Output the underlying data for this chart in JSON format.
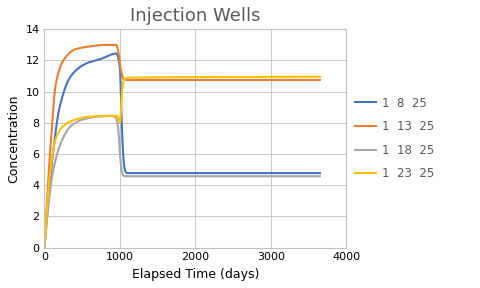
{
  "title": "Injection Wells",
  "xlabel": "Elapsed Time (days)",
  "ylabel": "Concentration",
  "xlim": [
    0,
    4000
  ],
  "ylim": [
    0,
    14
  ],
  "yticks": [
    0,
    2,
    4,
    6,
    8,
    10,
    12,
    14
  ],
  "xticks": [
    0,
    1000,
    2000,
    3000,
    4000
  ],
  "series": [
    {
      "label": "1  8  25",
      "color": "#4472C4",
      "key_points": [
        [
          0,
          0
        ],
        [
          100,
          5.5
        ],
        [
          200,
          9.0
        ],
        [
          350,
          11.0
        ],
        [
          550,
          11.8
        ],
        [
          750,
          12.1
        ],
        [
          900,
          12.4
        ],
        [
          950,
          12.45
        ],
        [
          1000,
          11.5
        ],
        [
          1020,
          8.5
        ],
        [
          1040,
          6.2
        ],
        [
          1060,
          5.1
        ],
        [
          1080,
          4.82
        ],
        [
          1100,
          4.78
        ],
        [
          3650,
          4.78
        ]
      ]
    },
    {
      "label": "1  13  25",
      "color": "#ED7D31",
      "key_points": [
        [
          0,
          0
        ],
        [
          80,
          6.5
        ],
        [
          150,
          10.5
        ],
        [
          250,
          12.0
        ],
        [
          400,
          12.7
        ],
        [
          600,
          12.9
        ],
        [
          800,
          13.0
        ],
        [
          950,
          13.0
        ],
        [
          980,
          12.5
        ],
        [
          1000,
          11.8
        ],
        [
          1020,
          11.2
        ],
        [
          1050,
          10.8
        ],
        [
          1100,
          10.75
        ],
        [
          3650,
          10.75
        ]
      ]
    },
    {
      "label": "1  18  25",
      "color": "#A5A5A5",
      "key_points": [
        [
          0,
          0
        ],
        [
          100,
          4.5
        ],
        [
          200,
          6.5
        ],
        [
          350,
          7.8
        ],
        [
          500,
          8.2
        ],
        [
          700,
          8.4
        ],
        [
          900,
          8.45
        ],
        [
          950,
          8.3
        ],
        [
          980,
          7.5
        ],
        [
          1000,
          6.0
        ],
        [
          1020,
          5.0
        ],
        [
          1040,
          4.65
        ],
        [
          1070,
          4.58
        ],
        [
          1100,
          4.58
        ],
        [
          3650,
          4.58
        ]
      ]
    },
    {
      "label": "1  23  25",
      "color": "#FFC000",
      "key_points": [
        [
          0,
          0
        ],
        [
          80,
          5.0
        ],
        [
          150,
          7.0
        ],
        [
          250,
          7.8
        ],
        [
          400,
          8.2
        ],
        [
          600,
          8.4
        ],
        [
          800,
          8.45
        ],
        [
          950,
          8.45
        ],
        [
          980,
          8.3
        ],
        [
          1000,
          8.0
        ],
        [
          1020,
          9.5
        ],
        [
          1040,
          10.5
        ],
        [
          1060,
          10.8
        ],
        [
          1100,
          10.9
        ],
        [
          3650,
          10.95
        ]
      ]
    }
  ],
  "background_color": "#FFFFFF",
  "plot_bg_color": "#FFFFFF",
  "grid_color": "#C0C0C0",
  "title_color": "#595959",
  "title_fontsize": 13,
  "axis_label_fontsize": 9,
  "tick_labelsize": 8,
  "legend_fontsize": 8.5
}
